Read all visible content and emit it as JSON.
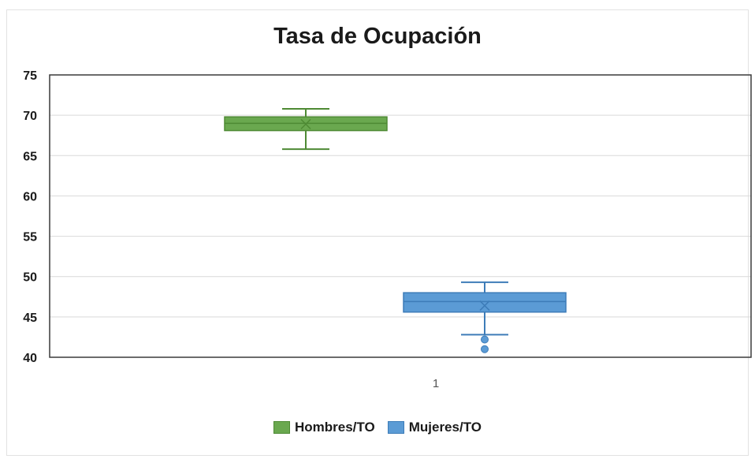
{
  "chart_data": {
    "type": "box",
    "title": "Tasa de Ocupación",
    "xlabel": "",
    "ylabel": "",
    "categories": [
      "1"
    ],
    "ylim": [
      40,
      75
    ],
    "yticks": [
      40,
      45,
      50,
      55,
      60,
      65,
      70,
      75
    ],
    "grid": true,
    "legend_position": "bottom",
    "series": [
      {
        "name": "Hombres/TO",
        "color": "#6aa84f",
        "stroke": "#4e8a34",
        "whisker_low": 65.8,
        "q1": 68.1,
        "median": 69.0,
        "q3": 69.8,
        "whisker_high": 70.8,
        "mean": 68.9,
        "outliers": []
      },
      {
        "name": "Mujeres/TO",
        "color": "#5b9bd5",
        "stroke": "#3d7cb8",
        "whisker_low": 42.8,
        "q1": 45.6,
        "median": 46.9,
        "q3": 48.0,
        "whisker_high": 49.3,
        "mean": 46.4,
        "outliers": [
          42.2,
          41.0
        ]
      }
    ]
  }
}
